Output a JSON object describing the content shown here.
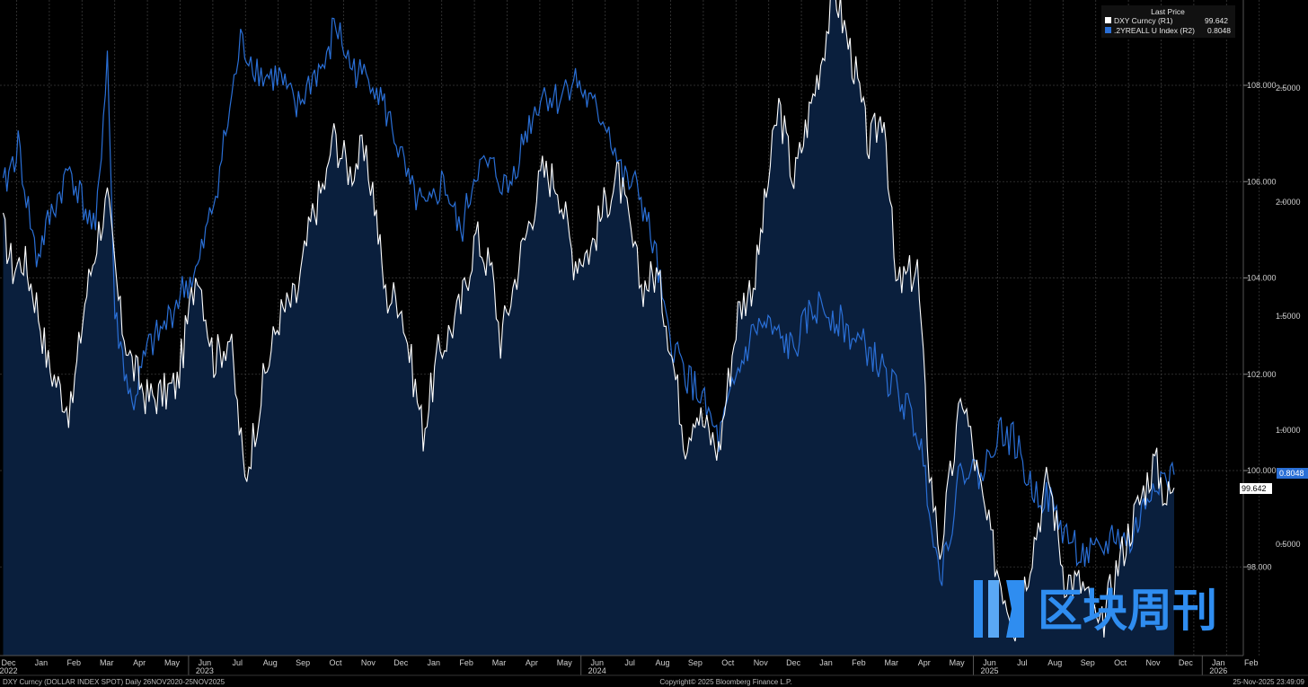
{
  "chart_data": {
    "type": "line",
    "title": "",
    "legend": {
      "header": "Last Price",
      "position": "top-right",
      "entries": [
        {
          "label": "DXY Curncy  (R1)",
          "last": "99.642",
          "color": "#ffffff"
        },
        {
          "label": ".2YREALL U Index  (R2)",
          "last": "0.8048",
          "color": "#2a6fd6"
        }
      ]
    },
    "x_months": [
      "Dec",
      "Jan",
      "Feb",
      "Mar",
      "Apr",
      "May",
      "Jun",
      "Jul",
      "Aug",
      "Sep",
      "Oct",
      "Nov",
      "Dec",
      "Jan",
      "Feb",
      "Mar",
      "Apr",
      "May",
      "Jun",
      "Jul",
      "Aug",
      "Sep",
      "Oct",
      "Nov",
      "Dec",
      "Jan",
      "Feb",
      "Mar",
      "Apr",
      "May",
      "Jun",
      "Jul",
      "Aug",
      "Sep",
      "Oct",
      "Nov",
      "Dec",
      "Jan",
      "Feb"
    ],
    "x_years": [
      {
        "label": "2022",
        "month_index": 0
      },
      {
        "label": "2023",
        "month_index": 6
      },
      {
        "label": "2024",
        "month_index": 18
      },
      {
        "label": "2025",
        "month_index": 30
      },
      {
        "label": "2026",
        "month_index": 37
      }
    ],
    "y1_axis": {
      "ticks": [
        "98.000",
        "100.000",
        "102.000",
        "104.000",
        "106.000",
        "108.000"
      ],
      "range": [
        96.0,
        110.0
      ]
    },
    "y2_axis": {
      "ticks": [
        "0.5000",
        "1.0000",
        "1.5000",
        "2.0000",
        "2.5000"
      ],
      "range": [
        0.0,
        2.9
      ]
    },
    "series": [
      {
        "name": "DXY Curncy",
        "axis": "R1",
        "color": "#ffffff",
        "fill": "#0a1f3d",
        "x": [
          0,
          0.5,
          1,
          1.5,
          2,
          2.5,
          3,
          3.5,
          4,
          4.5,
          5,
          5.5,
          6,
          6.5,
          7,
          7.5,
          8,
          8.5,
          9,
          9.5,
          10,
          10.5,
          11,
          11.5,
          12,
          12.5,
          13,
          13.5,
          14,
          14.5,
          15,
          15.5,
          16,
          16.5,
          17,
          17.5,
          18,
          18.5,
          19,
          19.5,
          20,
          20.5,
          21,
          21.5,
          22,
          22.5,
          23,
          23.5,
          24,
          24.5,
          25,
          25.5,
          26,
          26.5,
          27,
          27.5,
          28,
          28.5,
          29,
          29.5,
          30,
          30.5,
          31,
          31.5,
          32,
          32.5,
          33,
          33.5,
          34,
          34.5,
          35,
          35.5,
          36,
          36.5,
          37,
          37.5,
          38,
          38.5,
          39,
          39.5,
          40,
          40.5,
          41,
          41.5,
          42,
          42.5,
          43,
          43.5,
          44,
          44.5,
          45,
          45.5,
          46,
          46.5,
          47,
          47.5,
          48,
          48.5,
          49,
          49.5,
          50,
          50.5,
          51,
          51.5,
          52,
          52.5,
          53,
          53.5,
          54,
          54.5,
          55,
          55.5,
          56,
          56.5,
          57,
          57.5,
          58,
          58.5,
          59,
          59.5,
          60,
          60.5,
          61,
          61.5,
          62,
          62.5,
          63,
          63.5,
          64,
          64.5,
          65,
          65.5,
          66,
          66.5,
          67,
          67.5,
          68,
          68.5,
          69,
          69.5,
          70,
          70.5,
          71,
          71.5,
          72,
          72.5,
          73,
          73.5,
          74,
          74.5,
          75,
          75.5,
          76,
          76.5,
          77,
          77.5,
          78,
          78.5,
          79,
          79.5,
          80,
          80.5,
          81,
          81.5,
          82,
          82.5,
          83,
          83.5,
          84,
          84.5,
          85,
          85.5,
          86,
          86.5,
          87,
          87.5,
          88,
          88.5,
          89,
          89.5,
          90,
          90.5,
          91,
          91.5,
          92,
          92.5,
          93,
          93.5,
          94,
          94.5,
          95,
          95.5,
          96,
          96.5,
          97,
          97.5,
          98,
          98.5,
          99,
          99.5,
          100,
          100.5,
          101,
          101.5,
          102,
          102.5,
          103,
          103.5,
          104,
          104.5,
          105,
          105.5,
          106,
          106.5,
          107,
          107.5,
          108,
          108.5,
          109,
          109.5,
          110,
          110.5,
          111,
          111.5,
          112,
          112.5,
          113,
          113.5,
          114,
          114.5,
          115,
          115.5,
          116,
          116.5,
          117,
          117.5,
          118,
          118.5,
          119,
          119.5,
          120,
          120.5,
          121,
          121.5,
          122,
          122.5,
          123,
          123.5,
          124,
          124.5,
          125,
          125.5,
          126,
          126.5,
          127,
          127.5,
          128,
          128.5,
          129,
          129.5,
          130,
          130.5,
          131,
          131.5,
          132,
          132.5,
          133,
          133.5,
          134,
          134.5,
          135,
          135.5,
          136,
          136.5,
          137,
          137.5,
          138,
          138.5,
          139,
          139.5,
          140,
          140.5,
          141,
          141.5,
          142,
          142.5,
          143,
          143.5,
          144,
          144.5,
          145,
          145.5,
          146,
          146.5,
          147,
          147.5,
          148,
          148.5,
          149,
          149.5,
          150,
          150.5,
          151,
          151.5,
          152,
          152.5,
          153,
          153.5,
          154,
          154.5,
          155,
          155.5,
          156,
          156.5,
          157,
          157.5,
          158,
          158.5,
          159,
          159.5,
          160,
          160.5,
          161,
          161.5,
          162,
          162.5,
          163,
          163.5,
          164,
          164.5,
          165,
          165.5,
          166,
          166.5,
          167,
          167.5,
          168,
          168.5,
          169,
          169.5,
          170,
          170.5,
          171,
          171.5,
          172,
          172.5,
          173,
          173.5,
          174,
          174.5,
          175,
          175.5,
          176,
          176.5,
          177,
          177.5,
          178,
          178.5,
          179,
          179.5,
          180,
          180.5,
          181,
          181.5,
          182,
          182.5,
          183,
          183.5,
          184,
          184.5,
          185,
          185.5,
          186,
          186.5,
          187,
          187.5,
          188,
          188.5,
          189,
          189.5,
          190,
          190.5,
          191,
          191.5,
          192,
          192.5,
          193,
          193.5,
          194,
          194.5,
          195,
          195.5,
          196,
          196.5,
          197,
          197.5,
          198,
          198.5,
          199,
          199.5,
          200
        ],
        "date_points": [
          [
            "2022-12-01",
            105.0
          ],
          [
            "2022-12-10",
            104.2
          ],
          [
            "2022-12-20",
            104.4
          ],
          [
            "2023-01-01",
            103.5
          ],
          [
            "2023-01-12",
            102.2
          ],
          [
            "2023-01-25",
            101.6
          ],
          [
            "2023-02-02",
            101.2
          ],
          [
            "2023-02-15",
            103.5
          ],
          [
            "2023-02-28",
            105.0
          ],
          [
            "2023-03-08",
            105.6
          ],
          [
            "2023-03-20",
            103.2
          ],
          [
            "2023-03-31",
            102.2
          ],
          [
            "2023-04-14",
            101.5
          ],
          [
            "2023-04-30",
            101.6
          ],
          [
            "2023-05-12",
            101.8
          ],
          [
            "2023-05-31",
            104.3
          ],
          [
            "2023-06-15",
            102.3
          ],
          [
            "2023-06-30",
            102.8
          ],
          [
            "2023-07-14",
            99.8
          ],
          [
            "2023-07-31",
            101.8
          ],
          [
            "2023-08-15",
            103.2
          ],
          [
            "2023-08-31",
            103.6
          ],
          [
            "2023-09-15",
            105.3
          ],
          [
            "2023-09-30",
            106.2
          ],
          [
            "2023-10-03",
            107.0
          ],
          [
            "2023-10-20",
            106.2
          ],
          [
            "2023-10-31",
            106.6
          ],
          [
            "2023-11-10",
            105.9
          ],
          [
            "2023-11-22",
            103.6
          ],
          [
            "2023-12-05",
            103.6
          ],
          [
            "2023-12-27",
            100.8
          ],
          [
            "2024-01-10",
            102.4
          ],
          [
            "2024-01-31",
            103.4
          ],
          [
            "2024-02-14",
            104.9
          ],
          [
            "2024-02-29",
            104.1
          ],
          [
            "2024-03-08",
            102.7
          ],
          [
            "2024-03-27",
            104.5
          ],
          [
            "2024-04-16",
            106.2
          ],
          [
            "2024-04-30",
            106.0
          ],
          [
            "2024-05-15",
            104.4
          ],
          [
            "2024-05-31",
            104.6
          ],
          [
            "2024-06-14",
            105.6
          ],
          [
            "2024-06-26",
            106.1
          ],
          [
            "2024-07-17",
            103.8
          ],
          [
            "2024-07-31",
            104.1
          ],
          [
            "2024-08-09",
            103.2
          ],
          [
            "2024-08-27",
            100.6
          ],
          [
            "2024-09-05",
            101.3
          ],
          [
            "2024-09-27",
            100.4
          ],
          [
            "2024-10-15",
            103.3
          ],
          [
            "2024-10-31",
            104.0
          ],
          [
            "2024-11-12",
            106.0
          ],
          [
            "2024-11-22",
            107.6
          ],
          [
            "2024-12-06",
            106.0
          ],
          [
            "2024-12-31",
            108.5
          ],
          [
            "2025-01-13",
            110.0
          ],
          [
            "2025-01-31",
            108.4
          ],
          [
            "2025-02-14",
            106.7
          ],
          [
            "2025-02-28",
            107.5
          ],
          [
            "2025-03-11",
            103.8
          ],
          [
            "2025-03-31",
            104.2
          ],
          [
            "2025-04-11",
            100.1
          ],
          [
            "2025-04-21",
            98.3
          ],
          [
            "2025-05-12",
            101.6
          ],
          [
            "2025-05-31",
            99.3
          ],
          [
            "2025-06-13",
            98.0
          ],
          [
            "2025-06-30",
            96.8
          ],
          [
            "2025-07-14",
            98.2
          ],
          [
            "2025-07-31",
            99.9
          ],
          [
            "2025-08-15",
            97.8
          ],
          [
            "2025-09-01",
            97.6
          ],
          [
            "2025-09-17",
            96.6
          ],
          [
            "2025-09-30",
            97.8
          ],
          [
            "2025-10-15",
            98.8
          ],
          [
            "2025-10-31",
            99.8
          ],
          [
            "2025-11-07",
            100.2
          ],
          [
            "2025-11-18",
            99.4
          ],
          [
            "2025-11-25",
            99.642
          ]
        ]
      },
      {
        "name": ".2YREALL U Index",
        "axis": "R2",
        "color": "#2a6fd6",
        "date_points": [
          [
            "2022-12-01",
            2.05
          ],
          [
            "2022-12-15",
            2.25
          ],
          [
            "2023-01-01",
            1.75
          ],
          [
            "2023-01-15",
            1.95
          ],
          [
            "2023-02-01",
            2.15
          ],
          [
            "2023-02-25",
            1.85
          ],
          [
            "2023-03-08",
            2.65
          ],
          [
            "2023-03-15",
            1.5
          ],
          [
            "2023-03-31",
            1.1
          ],
          [
            "2023-04-14",
            1.35
          ],
          [
            "2023-04-30",
            1.45
          ],
          [
            "2023-05-15",
            1.6
          ],
          [
            "2023-05-31",
            1.7
          ],
          [
            "2023-06-15",
            2.0
          ],
          [
            "2023-06-30",
            2.4
          ],
          [
            "2023-07-10",
            2.7
          ],
          [
            "2023-07-31",
            2.55
          ],
          [
            "2023-08-15",
            2.55
          ],
          [
            "2023-08-31",
            2.4
          ],
          [
            "2023-09-15",
            2.55
          ],
          [
            "2023-09-30",
            2.62
          ],
          [
            "2023-10-05",
            2.8
          ],
          [
            "2023-10-20",
            2.6
          ],
          [
            "2023-10-31",
            2.55
          ],
          [
            "2023-11-10",
            2.55
          ],
          [
            "2023-11-30",
            2.3
          ],
          [
            "2023-12-15",
            2.05
          ],
          [
            "2023-12-31",
            1.95
          ],
          [
            "2024-01-15",
            2.1
          ],
          [
            "2024-01-31",
            1.85
          ],
          [
            "2024-02-14",
            2.15
          ],
          [
            "2024-02-29",
            2.15
          ],
          [
            "2024-03-15",
            2.05
          ],
          [
            "2024-03-31",
            2.3
          ],
          [
            "2024-04-16",
            2.48
          ],
          [
            "2024-04-30",
            2.45
          ],
          [
            "2024-05-15",
            2.55
          ],
          [
            "2024-05-31",
            2.42
          ],
          [
            "2024-06-15",
            2.35
          ],
          [
            "2024-06-30",
            2.1
          ],
          [
            "2024-07-15",
            2.05
          ],
          [
            "2024-07-31",
            1.75
          ],
          [
            "2024-08-09",
            1.45
          ],
          [
            "2024-08-27",
            1.25
          ],
          [
            "2024-09-10",
            1.15
          ],
          [
            "2024-09-27",
            0.95
          ],
          [
            "2024-10-15",
            1.25
          ],
          [
            "2024-10-31",
            1.45
          ],
          [
            "2024-11-12",
            1.45
          ],
          [
            "2024-11-22",
            1.4
          ],
          [
            "2024-12-06",
            1.35
          ],
          [
            "2024-12-20",
            1.5
          ],
          [
            "2024-12-31",
            1.55
          ],
          [
            "2025-01-13",
            1.5
          ],
          [
            "2025-01-31",
            1.4
          ],
          [
            "2025-02-14",
            1.35
          ],
          [
            "2025-02-28",
            1.25
          ],
          [
            "2025-03-15",
            1.15
          ],
          [
            "2025-03-31",
            1.0
          ],
          [
            "2025-04-11",
            0.7
          ],
          [
            "2025-04-21",
            0.35
          ],
          [
            "2025-05-12",
            0.85
          ],
          [
            "2025-05-31",
            0.8
          ],
          [
            "2025-06-13",
            1.0
          ],
          [
            "2025-06-30",
            0.95
          ],
          [
            "2025-07-14",
            0.75
          ],
          [
            "2025-07-31",
            0.7
          ],
          [
            "2025-08-15",
            0.55
          ],
          [
            "2025-09-01",
            0.45
          ],
          [
            "2025-09-17",
            0.45
          ],
          [
            "2025-09-30",
            0.55
          ],
          [
            "2025-10-15",
            0.5
          ],
          [
            "2025-10-31",
            0.7
          ],
          [
            "2025-11-07",
            0.8
          ],
          [
            "2025-11-18",
            0.78
          ],
          [
            "2025-11-25",
            0.8048
          ]
        ]
      }
    ],
    "last_value_labels": {
      "r1": "99.642",
      "r2": "0.8048"
    },
    "grid": true
  },
  "footer": {
    "left": "DXY Curncy (DOLLAR INDEX SPOT) Daily 26NOV2020-25NOV2025",
    "center": "Copyright© 2025 Bloomberg Finance L.P.",
    "right": "25-Nov-2025 23:49:09"
  },
  "watermark": {
    "text": "区块周刊",
    "color": "#2f8df0"
  }
}
